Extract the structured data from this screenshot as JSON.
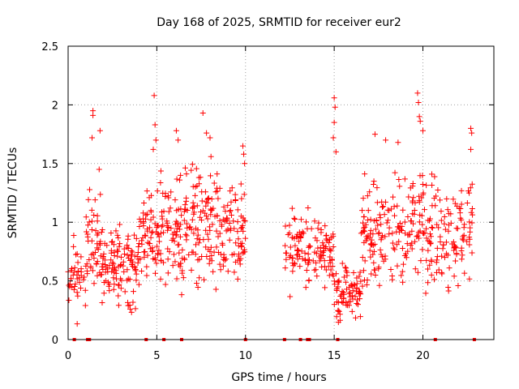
{
  "chart_data": {
    "type": "scatter",
    "title": "Day 168 of 2025, SRMTID for receiver eur2",
    "xlabel": "GPS time / hours",
    "ylabel": "SRMTID / TECUs",
    "xlim": [
      0,
      24
    ],
    "ylim": [
      0,
      2.5
    ],
    "grid": true,
    "marker": "+",
    "color": "#ff0000",
    "x_ticks": [
      {
        "value": 0,
        "label": "0"
      },
      {
        "value": 5,
        "label": "5"
      },
      {
        "value": 10,
        "label": "10"
      },
      {
        "value": 15,
        "label": "15"
      },
      {
        "value": 20,
        "label": "20"
      }
    ],
    "y_ticks": [
      {
        "value": 0,
        "label": "0"
      },
      {
        "value": 0.5,
        "label": "0.5"
      },
      {
        "value": 1,
        "label": "1"
      },
      {
        "value": 1.5,
        "label": "1.5"
      },
      {
        "value": 2,
        "label": "2"
      },
      {
        "value": 2.5,
        "label": "2.5"
      }
    ],
    "gaps": [
      10.0,
      12.2
    ],
    "density_profile": [
      {
        "start": 0.0,
        "end": 1.0,
        "low": 0.15,
        "high": 0.95,
        "n": 40
      },
      {
        "start": 1.0,
        "end": 2.0,
        "low": 0.25,
        "high": 1.3,
        "n": 55
      },
      {
        "start": 2.0,
        "end": 4.0,
        "low": 0.2,
        "high": 1.0,
        "n": 110
      },
      {
        "start": 4.0,
        "end": 5.0,
        "low": 0.4,
        "high": 1.35,
        "n": 55
      },
      {
        "start": 5.0,
        "end": 7.0,
        "low": 0.35,
        "high": 1.45,
        "n": 110
      },
      {
        "start": 7.0,
        "end": 8.5,
        "low": 0.35,
        "high": 1.6,
        "n": 90
      },
      {
        "start": 8.5,
        "end": 10.0,
        "low": 0.4,
        "high": 1.35,
        "n": 80
      },
      {
        "start": 12.2,
        "end": 13.8,
        "low": 0.35,
        "high": 1.2,
        "n": 70
      },
      {
        "start": 13.8,
        "end": 15.0,
        "low": 0.35,
        "high": 1.1,
        "n": 60
      },
      {
        "start": 15.0,
        "end": 16.5,
        "low": 0.15,
        "high": 0.7,
        "n": 80
      },
      {
        "start": 16.5,
        "end": 18.5,
        "low": 0.35,
        "high": 1.45,
        "n": 100
      },
      {
        "start": 18.5,
        "end": 20.5,
        "low": 0.3,
        "high": 1.5,
        "n": 100
      },
      {
        "start": 20.5,
        "end": 22.8,
        "low": 0.3,
        "high": 1.45,
        "n": 100
      }
    ],
    "outliers": [
      {
        "x": 1.4,
        "y": 1.95
      },
      {
        "x": 1.4,
        "y": 1.91
      },
      {
        "x": 1.35,
        "y": 1.72
      },
      {
        "x": 1.8,
        "y": 1.78
      },
      {
        "x": 1.75,
        "y": 1.45
      },
      {
        "x": 4.85,
        "y": 2.08
      },
      {
        "x": 4.9,
        "y": 1.83
      },
      {
        "x": 4.95,
        "y": 1.7
      },
      {
        "x": 4.8,
        "y": 1.62
      },
      {
        "x": 6.1,
        "y": 1.78
      },
      {
        "x": 6.2,
        "y": 1.7
      },
      {
        "x": 7.6,
        "y": 1.93
      },
      {
        "x": 7.8,
        "y": 1.76
      },
      {
        "x": 8.0,
        "y": 1.72
      },
      {
        "x": 9.85,
        "y": 1.65
      },
      {
        "x": 9.9,
        "y": 1.58
      },
      {
        "x": 9.95,
        "y": 1.5
      },
      {
        "x": 15.0,
        "y": 2.06
      },
      {
        "x": 15.05,
        "y": 1.98
      },
      {
        "x": 15.0,
        "y": 1.85
      },
      {
        "x": 14.95,
        "y": 1.72
      },
      {
        "x": 15.1,
        "y": 1.6
      },
      {
        "x": 17.3,
        "y": 1.75
      },
      {
        "x": 17.9,
        "y": 1.7
      },
      {
        "x": 18.6,
        "y": 1.68
      },
      {
        "x": 19.7,
        "y": 2.1
      },
      {
        "x": 19.75,
        "y": 2.02
      },
      {
        "x": 19.8,
        "y": 1.9
      },
      {
        "x": 19.85,
        "y": 1.86
      },
      {
        "x": 20.0,
        "y": 1.78
      },
      {
        "x": 22.7,
        "y": 1.8
      },
      {
        "x": 22.75,
        "y": 1.76
      },
      {
        "x": 22.7,
        "y": 1.62
      }
    ],
    "baseline_marks": [
      0.35,
      1.1,
      1.2,
      4.4,
      5.4,
      6.4,
      10.0,
      12.2,
      13.1,
      13.5,
      13.6,
      15.2,
      20.7,
      22.9
    ],
    "seed": 168
  }
}
